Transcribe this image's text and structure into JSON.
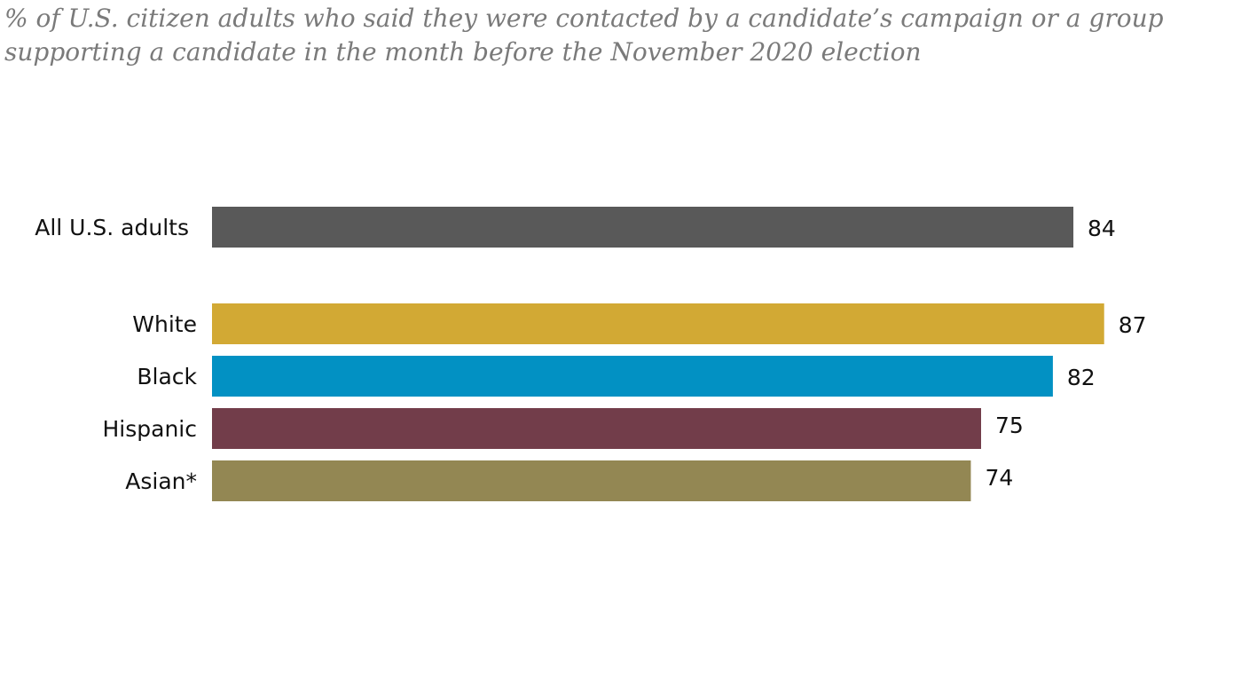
{
  "chart_data": {
    "type": "bar",
    "orientation": "horizontal",
    "subtitle": "% of U.S. citizen adults who said they were contacted by a candidate’s campaign or a group supporting a candidate in the month before the November 2020 election",
    "categories": [
      "All U.S. adults",
      "White",
      "Black",
      "Hispanic",
      "Asian*"
    ],
    "values": [
      84,
      87,
      82,
      75,
      74
    ],
    "value_labels": [
      "84",
      "87",
      "82",
      "75",
      "74"
    ],
    "colors": [
      "#595959",
      "#d2a934",
      "#0291c3",
      "#723d4a",
      "#938753"
    ],
    "xlim": [
      0,
      100
    ],
    "xlabel": "",
    "ylabel": "",
    "grid": false,
    "legend": "none"
  }
}
